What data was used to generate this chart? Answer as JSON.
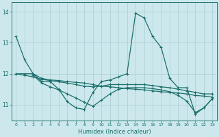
{
  "xlabel": "Humidex (Indice chaleur)",
  "bg_color": "#cce8ec",
  "grid_color": "#aacdd4",
  "line_color": "#1a6e6a",
  "xlim": [
    -0.5,
    23.5
  ],
  "ylim": [
    10.5,
    14.3
  ],
  "yticks": [
    11,
    12,
    13,
    14
  ],
  "xticks": [
    0,
    1,
    2,
    3,
    4,
    5,
    6,
    7,
    8,
    9,
    10,
    11,
    12,
    13,
    14,
    15,
    16,
    17,
    18,
    19,
    20,
    21,
    22,
    23
  ],
  "series": [
    {
      "x": [
        0,
        1,
        2,
        3,
        4,
        5,
        6,
        7,
        8,
        9,
        10,
        11,
        12,
        13,
        14,
        15,
        16,
        17,
        18,
        19,
        20,
        21,
        22,
        23
      ],
      "y": [
        13.2,
        12.45,
        12.0,
        11.75,
        11.75,
        11.5,
        11.1,
        10.9,
        10.85,
        11.4,
        11.75,
        11.8,
        11.9,
        12.0,
        13.95,
        13.8,
        13.2,
        12.85,
        11.85,
        11.55,
        11.55,
        10.7,
        10.9,
        11.2
      ]
    },
    {
      "x": [
        0,
        1,
        2,
        3,
        4,
        5,
        6,
        7,
        8,
        9,
        10,
        11,
        12,
        13,
        14,
        15,
        16,
        17,
        18,
        19,
        20,
        21,
        22,
        23
      ],
      "y": [
        12.0,
        12.0,
        12.0,
        11.85,
        11.8,
        11.78,
        11.75,
        11.72,
        11.7,
        11.65,
        11.6,
        11.58,
        11.55,
        11.52,
        11.5,
        11.48,
        11.45,
        11.42,
        11.4,
        11.38,
        11.35,
        11.3,
        11.28,
        11.25
      ]
    },
    {
      "x": [
        0,
        1,
        2,
        3,
        4,
        5,
        6,
        7,
        8,
        9,
        10,
        11,
        12,
        13,
        14,
        15,
        16,
        17,
        18,
        19,
        20,
        21,
        22,
        23
      ],
      "y": [
        12.0,
        11.95,
        11.9,
        11.82,
        11.78,
        11.74,
        11.7,
        11.65,
        11.6,
        11.58,
        11.6,
        11.65,
        11.65,
        11.65,
        11.65,
        11.65,
        11.62,
        11.58,
        11.55,
        11.5,
        11.45,
        11.4,
        11.35,
        11.35
      ]
    },
    {
      "x": [
        2,
        3,
        4,
        5,
        6,
        7,
        8,
        9,
        10,
        11,
        12,
        13,
        14,
        15,
        16,
        17,
        18,
        19,
        20,
        21,
        22,
        23
      ],
      "y": [
        11.95,
        11.7,
        11.58,
        11.48,
        11.35,
        11.22,
        11.08,
        10.95,
        11.15,
        11.35,
        11.5,
        11.55,
        11.55,
        11.55,
        11.52,
        11.48,
        11.42,
        11.3,
        11.12,
        10.75,
        10.9,
        11.2
      ]
    }
  ]
}
